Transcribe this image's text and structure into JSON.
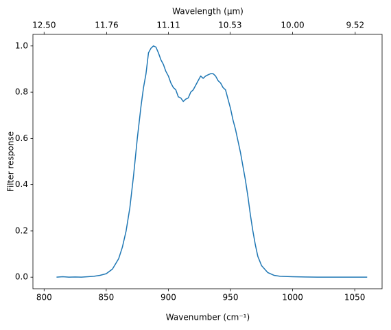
{
  "chart_data": {
    "type": "line",
    "xlabel": "Wavenumber (cm⁻¹)",
    "ylabel": "Filter response",
    "x2label": "Wavelength (μm)",
    "x": [
      810,
      815,
      820,
      825,
      830,
      835,
      840,
      845,
      850,
      855,
      860,
      863,
      866,
      869,
      872,
      875,
      878,
      880,
      882,
      884,
      886,
      888,
      890,
      892,
      894,
      896,
      898,
      900,
      902,
      904,
      906,
      908,
      910,
      912,
      914,
      916,
      918,
      920,
      922,
      924,
      926,
      928,
      930,
      932,
      934,
      936,
      938,
      940,
      942,
      944,
      946,
      948,
      950,
      952,
      954,
      956,
      958,
      960,
      962,
      964,
      966,
      968,
      970,
      972,
      975,
      980,
      985,
      990,
      1000,
      1010,
      1020,
      1040,
      1060
    ],
    "series": [
      {
        "color": "#1f77b4",
        "values": [
          0.0,
          0.002,
          0.0,
          0.001,
          0.0,
          0.002,
          0.004,
          0.008,
          0.015,
          0.035,
          0.08,
          0.13,
          0.2,
          0.3,
          0.44,
          0.6,
          0.74,
          0.82,
          0.88,
          0.97,
          0.99,
          1.0,
          0.995,
          0.97,
          0.94,
          0.92,
          0.89,
          0.87,
          0.84,
          0.82,
          0.81,
          0.78,
          0.775,
          0.76,
          0.77,
          0.775,
          0.8,
          0.81,
          0.83,
          0.85,
          0.87,
          0.86,
          0.87,
          0.875,
          0.88,
          0.88,
          0.87,
          0.85,
          0.84,
          0.82,
          0.81,
          0.77,
          0.73,
          0.68,
          0.64,
          0.59,
          0.54,
          0.48,
          0.42,
          0.35,
          0.27,
          0.2,
          0.14,
          0.09,
          0.05,
          0.02,
          0.008,
          0.004,
          0.002,
          0.001,
          0.0,
          0.0,
          0.0
        ]
      }
    ],
    "xlim": [
      791,
      1072
    ],
    "xticks": [
      800,
      850,
      900,
      950,
      1000,
      1050
    ],
    "ylim": [
      -0.05,
      1.05
    ],
    "yticks": [
      {
        "value": 0,
        "label": "0.0"
      },
      0.2,
      0.4,
      0.6,
      0.8,
      {
        "value": 1,
        "label": "1.0"
      }
    ],
    "x2lim": [
      12.642,
      9.328
    ],
    "x2scale": "reciprocal",
    "x2ticks": [
      {
        "value": 12.5,
        "label": "12.50"
      },
      11.76,
      11.11,
      10.53,
      {
        "value": 10,
        "label": "10.00"
      },
      9.52
    ]
  }
}
